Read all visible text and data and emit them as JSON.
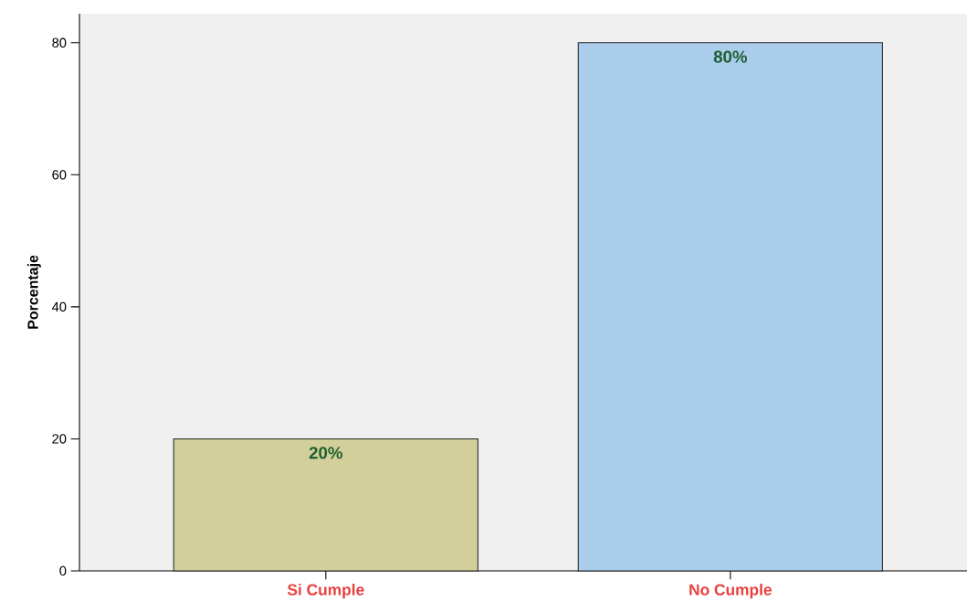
{
  "chart_data": {
    "type": "bar",
    "ylabel": "Porcentaje",
    "categories": [
      "Si Cumple",
      "No Cumple"
    ],
    "values": [
      20,
      80
    ],
    "colors": [
      "#d3cf9a",
      "#abcdec"
    ],
    "value_labels": [
      "20%",
      "80%"
    ],
    "ylim": [
      0,
      84.4
    ],
    "yticks": [
      0,
      20,
      40,
      60,
      80
    ]
  }
}
